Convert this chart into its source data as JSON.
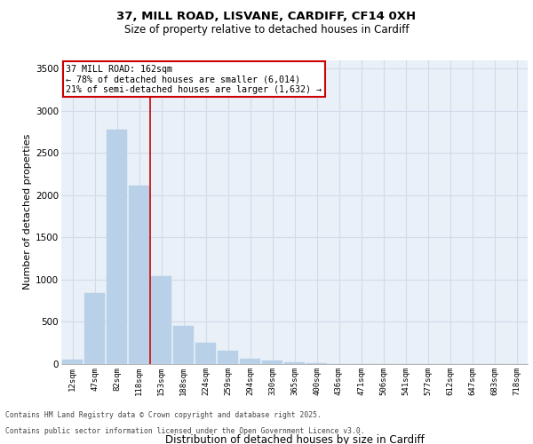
{
  "title_line1": "37, MILL ROAD, LISVANE, CARDIFF, CF14 0XH",
  "title_line2": "Size of property relative to detached houses in Cardiff",
  "xlabel": "Distribution of detached houses by size in Cardiff",
  "ylabel": "Number of detached properties",
  "categories": [
    "12sqm",
    "47sqm",
    "82sqm",
    "118sqm",
    "153sqm",
    "188sqm",
    "224sqm",
    "259sqm",
    "294sqm",
    "330sqm",
    "365sqm",
    "400sqm",
    "436sqm",
    "471sqm",
    "506sqm",
    "541sqm",
    "577sqm",
    "612sqm",
    "647sqm",
    "683sqm",
    "718sqm"
  ],
  "values": [
    50,
    840,
    2780,
    2110,
    1040,
    450,
    250,
    155,
    65,
    40,
    20,
    10,
    5,
    2,
    1,
    0,
    0,
    0,
    0,
    0,
    0
  ],
  "bar_color": "#b8d0e8",
  "bar_edge_color": "#b8d0e8",
  "vline_color": "#cc0000",
  "vline_x_index": 3.5,
  "annotation_title": "37 MILL ROAD: 162sqm",
  "annotation_line2": "← 78% of detached houses are smaller (6,014)",
  "annotation_line3": "21% of semi-detached houses are larger (1,632) →",
  "annotation_box_color": "#ffffff",
  "annotation_box_edge": "#cc0000",
  "grid_color": "#d0dce8",
  "background_color": "#eaf0f8",
  "ylim": [
    0,
    3600
  ],
  "yticks": [
    0,
    500,
    1000,
    1500,
    2000,
    2500,
    3000,
    3500
  ],
  "footer_line1": "Contains HM Land Registry data © Crown copyright and database right 2025.",
  "footer_line2": "Contains public sector information licensed under the Open Government Licence v3.0."
}
